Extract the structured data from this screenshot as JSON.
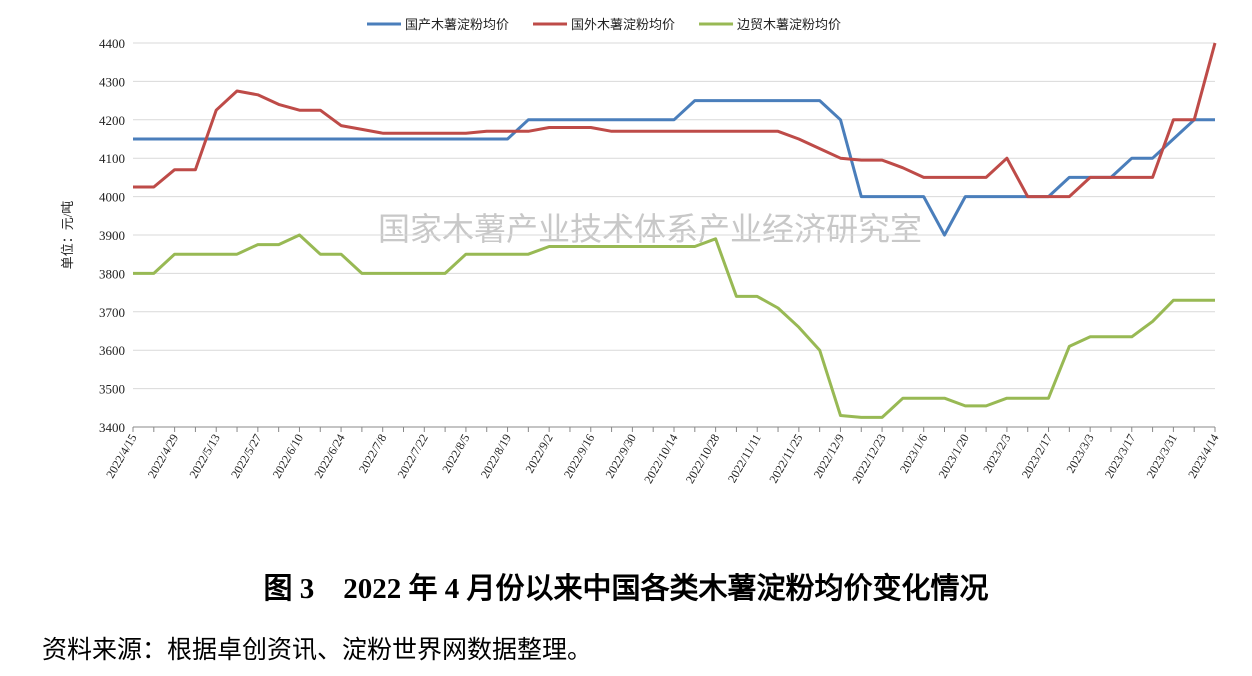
{
  "chart_data": {
    "type": "line",
    "y_label": "单位：元/吨",
    "annotation": "国家木薯产业技术体系产业经济研究室",
    "categories": [
      "2022/4/15",
      null,
      "2022/4/29",
      null,
      "2022/5/13",
      null,
      "2022/5/27",
      null,
      "2022/6/10",
      null,
      "2022/6/24",
      null,
      "2022/7/8",
      null,
      "2022/7/22",
      null,
      "2022/8/5",
      null,
      "2022/8/19",
      null,
      "2022/9/2",
      null,
      "2022/9/16",
      null,
      "2022/9/30",
      null,
      "2022/10/14",
      null,
      "2022/10/28",
      null,
      "2022/11/11",
      null,
      "2022/11/25",
      null,
      "2022/12/9",
      null,
      "2022/12/23",
      null,
      "2023/1/6",
      null,
      "2023/1/20",
      null,
      "2023/2/3",
      null,
      "2023/2/17",
      null,
      "2023/3/3",
      null,
      "2023/3/17",
      null,
      "2023/3/31",
      null,
      "2023/4/14"
    ],
    "series": [
      {
        "name": "国产木薯淀粉均价",
        "color": "#4a7ebb",
        "values": [
          4150,
          4150,
          4150,
          4150,
          4150,
          4150,
          4150,
          4150,
          4150,
          4150,
          4150,
          4150,
          4150,
          4150,
          4150,
          4150,
          4150,
          4150,
          4150,
          4200,
          4200,
          4200,
          4200,
          4200,
          4200,
          4200,
          4200,
          4250,
          4250,
          4250,
          4250,
          4250,
          4250,
          4250,
          4200,
          4000,
          4000,
          4000,
          4000,
          3900,
          4000,
          4000,
          4000,
          4000,
          4000,
          4050,
          4050,
          4050,
          4100,
          4100,
          4150,
          4200,
          4200
        ]
      },
      {
        "name": "国外木薯淀粉均价",
        "color": "#be4b48",
        "values": [
          4025,
          4025,
          4070,
          4070,
          4225,
          4275,
          4265,
          4240,
          4225,
          4225,
          4185,
          4175,
          4165,
          4165,
          4165,
          4165,
          4165,
          4170,
          4170,
          4170,
          4180,
          4180,
          4180,
          4170,
          4170,
          4170,
          4170,
          4170,
          4170,
          4170,
          4170,
          4170,
          4150,
          4125,
          4100,
          4095,
          4095,
          4075,
          4050,
          4050,
          4050,
          4050,
          4100,
          4000,
          4000,
          4000,
          4050,
          4050,
          4050,
          4050,
          4200,
          4200,
          4400
        ]
      },
      {
        "name": "边贸木薯淀粉均价",
        "color": "#98b954",
        "values": [
          3800,
          3800,
          3850,
          3850,
          3850,
          3850,
          3875,
          3875,
          3900,
          3850,
          3850,
          3800,
          3800,
          3800,
          3800,
          3800,
          3850,
          3850,
          3850,
          3850,
          3870,
          3870,
          3870,
          3870,
          3870,
          3870,
          3870,
          3870,
          3890,
          3740,
          3740,
          3710,
          3660,
          3600,
          3430,
          3425,
          3425,
          3475,
          3475,
          3475,
          3455,
          3455,
          3475,
          3475,
          3475,
          3610,
          3635,
          3635,
          3635,
          3675,
          3730,
          3730,
          3730
        ]
      }
    ],
    "ylim": [
      3400,
      4400
    ],
    "yticks": [
      3400,
      3500,
      3600,
      3700,
      3800,
      3900,
      4000,
      4100,
      4200,
      4300,
      4400
    ],
    "grid": true,
    "legend": "top"
  },
  "caption": "图 3　2022 年 4 月份以来中国各类木薯淀粉均价变化情况",
  "source": "资料来源：根据卓创资讯、淀粉世界网数据整理。"
}
